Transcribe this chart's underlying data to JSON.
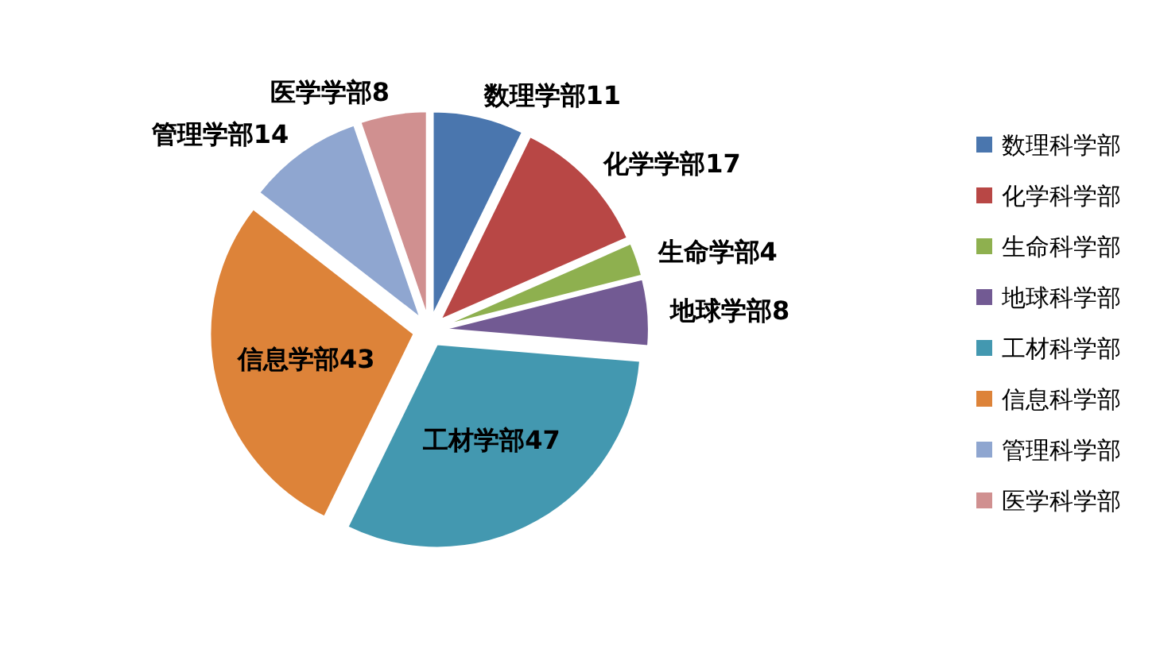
{
  "chart_data": {
    "type": "pie",
    "categories": [
      "数理科学部",
      "化学科学部",
      "生命科学部",
      "地球科学部",
      "工材科学部",
      "信息科学部",
      "管理科学部",
      "医学科学部"
    ],
    "values": [
      11,
      17,
      4,
      8,
      47,
      43,
      14,
      8
    ],
    "colors": [
      "#4a76ae",
      "#b84745",
      "#8eb04f",
      "#725a93",
      "#4398b0",
      "#dd8339",
      "#8fa6d0",
      "#d09090"
    ],
    "value_labels": [
      "数理学部11",
      "化学学部17",
      "生命学部4",
      "地球学部8",
      "工材学部47",
      "信息学部43",
      "管理学部14",
      "医学学部8"
    ],
    "legend": "right"
  }
}
